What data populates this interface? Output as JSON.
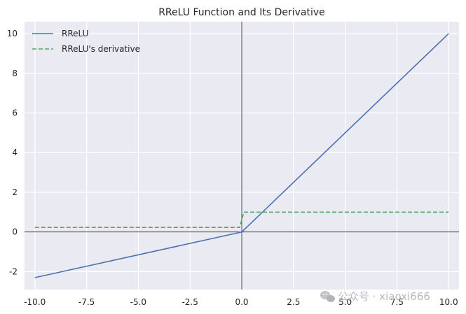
{
  "chart_data": {
    "type": "line",
    "title": "RReLU Function and Its Derivative",
    "xlabel": "",
    "ylabel": "",
    "xlim": [
      -10.5,
      10.5
    ],
    "ylim": [
      -2.9,
      10.6
    ],
    "xticks": [
      -10.0,
      -7.5,
      -5.0,
      -2.5,
      0.0,
      2.5,
      5.0,
      7.5,
      10.0
    ],
    "xtick_labels": [
      "-10.0",
      "-7.5",
      "-5.0",
      "-2.5",
      "0.0",
      "2.5",
      "5.0",
      "7.5",
      "10.0"
    ],
    "yticks": [
      -2,
      0,
      2,
      4,
      6,
      8,
      10
    ],
    "ytick_labels": [
      "-2",
      "0",
      "2",
      "4",
      "6",
      "8",
      "10"
    ],
    "grid": true,
    "legend_position": "top-left",
    "series": [
      {
        "name": "RReLU",
        "color": "#4c72b0",
        "style": "solid",
        "x": [
          -10,
          0,
          10
        ],
        "y": [
          -2.3,
          0,
          10
        ]
      },
      {
        "name": "RReLU's derivative",
        "color": "#55a868",
        "style": "dashed",
        "x": [
          -10,
          -0.1,
          0.1,
          10
        ],
        "y": [
          0.23,
          0.23,
          1,
          1
        ]
      }
    ]
  },
  "watermark": {
    "text": "公众号 · xiaoxi666",
    "icon": "wechat-icon"
  }
}
